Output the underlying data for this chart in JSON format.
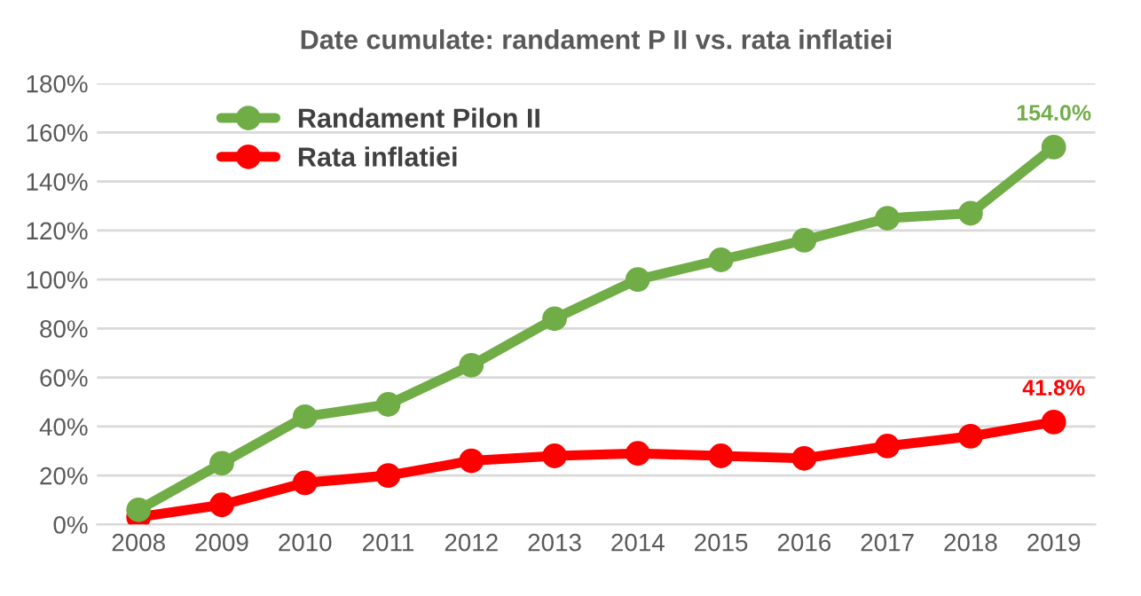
{
  "chart_data": {
    "type": "line",
    "title": "Date cumulate: randament P II vs. rata inflatiei",
    "categories": [
      "2008",
      "2009",
      "2010",
      "2011",
      "2012",
      "2013",
      "2014",
      "2015",
      "2016",
      "2017",
      "2018",
      "2019"
    ],
    "series": [
      {
        "name": "Randament Pilon II",
        "color": "#70ad47",
        "values": [
          6,
          25,
          44,
          49,
          65,
          84,
          100,
          108,
          116,
          125,
          127,
          154.0
        ],
        "value_labels": [
          null,
          null,
          null,
          null,
          null,
          null,
          null,
          null,
          null,
          null,
          null,
          "154.0%"
        ]
      },
      {
        "name": "Rata inflatiei",
        "color": "#ff0000",
        "values": [
          3,
          8,
          17,
          20,
          26,
          28,
          29,
          28,
          27,
          32,
          36,
          41.8
        ],
        "value_labels": [
          null,
          null,
          null,
          null,
          null,
          null,
          null,
          null,
          null,
          null,
          null,
          "41.8%"
        ]
      }
    ],
    "ylim": [
      0,
      180
    ],
    "yticks": [
      {
        "value": 0,
        "label": "0%"
      },
      {
        "value": 20,
        "label": "20%"
      },
      {
        "value": 40,
        "label": "40%"
      },
      {
        "value": 60,
        "label": "60%"
      },
      {
        "value": 80,
        "label": "80%"
      },
      {
        "value": 100,
        "label": "100%"
      },
      {
        "value": 120,
        "label": "120%"
      },
      {
        "value": 140,
        "label": "140%"
      },
      {
        "value": 160,
        "label": "160%"
      },
      {
        "value": 180,
        "label": "180%"
      }
    ],
    "grid": "y",
    "legend": "top left",
    "marker": "circle",
    "line_style": "solid"
  }
}
